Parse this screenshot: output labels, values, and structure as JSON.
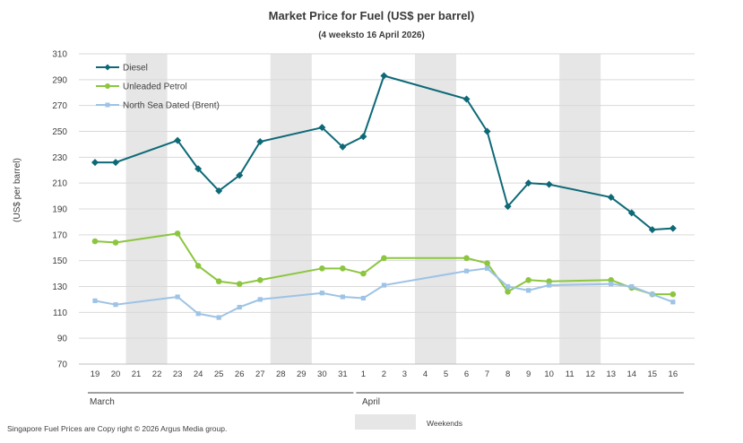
{
  "chart_data": {
    "type": "line",
    "title": "Market Price for Fuel (US$ per barrel)",
    "subtitle": "(4 weeksto 16 April 2026)",
    "xlabel": "",
    "ylabel": "(US$ per barrel)",
    "ylim": [
      70,
      310
    ],
    "yticks": [
      70,
      90,
      110,
      130,
      150,
      170,
      190,
      210,
      230,
      250,
      270,
      290,
      310
    ],
    "grid": true,
    "legend_position": "top-left",
    "categories": [
      "19",
      "20",
      "21",
      "22",
      "23",
      "24",
      "25",
      "26",
      "27",
      "28",
      "29",
      "30",
      "31",
      "1",
      "2",
      "3",
      "4",
      "5",
      "6",
      "7",
      "8",
      "9",
      "10",
      "11",
      "12",
      "13",
      "14",
      "15",
      "16"
    ],
    "months": [
      {
        "label": "March",
        "start_index": 0,
        "end_index": 12
      },
      {
        "label": "April",
        "start_index": 13,
        "end_index": 28
      }
    ],
    "weekends": [
      [
        2,
        3
      ],
      [
        9,
        10
      ],
      [
        16,
        17
      ],
      [
        23,
        24
      ]
    ],
    "series": [
      {
        "name": "Diesel",
        "color": "#0e6977",
        "marker": "diamond",
        "values": [
          226,
          226,
          null,
          null,
          243,
          221,
          204,
          216,
          242,
          null,
          null,
          253,
          238,
          246,
          293,
          null,
          null,
          null,
          275,
          250,
          192,
          210,
          209,
          null,
          null,
          199,
          187,
          174,
          175
        ]
      },
      {
        "name": "Unleaded Petrol",
        "color": "#8cc63f",
        "marker": "circle",
        "values": [
          165,
          164,
          null,
          null,
          171,
          146,
          134,
          132,
          135,
          null,
          null,
          144,
          144,
          140,
          152,
          null,
          null,
          null,
          152,
          148,
          126,
          135,
          134,
          null,
          null,
          135,
          129,
          124,
          124
        ]
      },
      {
        "name": "North Sea Dated (Brent)",
        "color": "#9dc3e6",
        "marker": "square",
        "values": [
          119,
          116,
          null,
          null,
          122,
          109,
          106,
          114,
          120,
          null,
          null,
          125,
          122,
          121,
          131,
          null,
          null,
          null,
          142,
          144,
          130,
          127,
          131,
          null,
          null,
          132,
          130,
          124,
          118
        ]
      }
    ]
  },
  "legend_label_weekends": "Weekends",
  "footer": "Singapore  Fuel Prices are  Copy right © 2026  Argus Media  group."
}
